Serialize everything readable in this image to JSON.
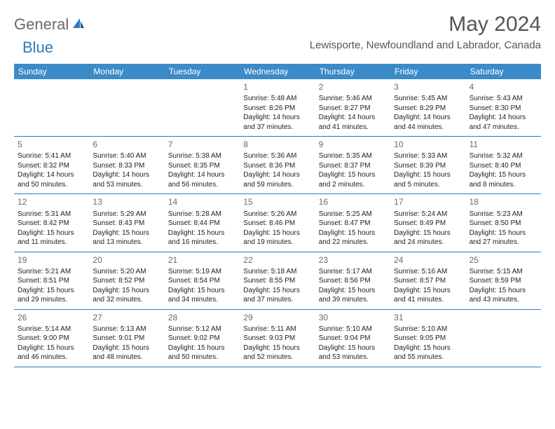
{
  "logo": {
    "general": "General",
    "blue": "Blue"
  },
  "title": "May 2024",
  "location": "Lewisporte, Newfoundland and Labrador, Canada",
  "colors": {
    "header_bg": "#3b8bc9",
    "header_text": "#ffffff",
    "divider": "#2b7bbf",
    "text": "#222222",
    "muted": "#6a6a6a",
    "logo_gray": "#6a6a6a",
    "logo_blue": "#2b7bbf",
    "background": "#ffffff"
  },
  "weekdays": [
    "Sunday",
    "Monday",
    "Tuesday",
    "Wednesday",
    "Thursday",
    "Friday",
    "Saturday"
  ],
  "weeks": [
    [
      null,
      null,
      null,
      {
        "n": "1",
        "sr": "Sunrise: 5:48 AM",
        "ss": "Sunset: 8:26 PM",
        "d1": "Daylight: 14 hours",
        "d2": "and 37 minutes."
      },
      {
        "n": "2",
        "sr": "Sunrise: 5:46 AM",
        "ss": "Sunset: 8:27 PM",
        "d1": "Daylight: 14 hours",
        "d2": "and 41 minutes."
      },
      {
        "n": "3",
        "sr": "Sunrise: 5:45 AM",
        "ss": "Sunset: 8:29 PM",
        "d1": "Daylight: 14 hours",
        "d2": "and 44 minutes."
      },
      {
        "n": "4",
        "sr": "Sunrise: 5:43 AM",
        "ss": "Sunset: 8:30 PM",
        "d1": "Daylight: 14 hours",
        "d2": "and 47 minutes."
      }
    ],
    [
      {
        "n": "5",
        "sr": "Sunrise: 5:41 AM",
        "ss": "Sunset: 8:32 PM",
        "d1": "Daylight: 14 hours",
        "d2": "and 50 minutes."
      },
      {
        "n": "6",
        "sr": "Sunrise: 5:40 AM",
        "ss": "Sunset: 8:33 PM",
        "d1": "Daylight: 14 hours",
        "d2": "and 53 minutes."
      },
      {
        "n": "7",
        "sr": "Sunrise: 5:38 AM",
        "ss": "Sunset: 8:35 PM",
        "d1": "Daylight: 14 hours",
        "d2": "and 56 minutes."
      },
      {
        "n": "8",
        "sr": "Sunrise: 5:36 AM",
        "ss": "Sunset: 8:36 PM",
        "d1": "Daylight: 14 hours",
        "d2": "and 59 minutes."
      },
      {
        "n": "9",
        "sr": "Sunrise: 5:35 AM",
        "ss": "Sunset: 8:37 PM",
        "d1": "Daylight: 15 hours",
        "d2": "and 2 minutes."
      },
      {
        "n": "10",
        "sr": "Sunrise: 5:33 AM",
        "ss": "Sunset: 8:39 PM",
        "d1": "Daylight: 15 hours",
        "d2": "and 5 minutes."
      },
      {
        "n": "11",
        "sr": "Sunrise: 5:32 AM",
        "ss": "Sunset: 8:40 PM",
        "d1": "Daylight: 15 hours",
        "d2": "and 8 minutes."
      }
    ],
    [
      {
        "n": "12",
        "sr": "Sunrise: 5:31 AM",
        "ss": "Sunset: 8:42 PM",
        "d1": "Daylight: 15 hours",
        "d2": "and 11 minutes."
      },
      {
        "n": "13",
        "sr": "Sunrise: 5:29 AM",
        "ss": "Sunset: 8:43 PM",
        "d1": "Daylight: 15 hours",
        "d2": "and 13 minutes."
      },
      {
        "n": "14",
        "sr": "Sunrise: 5:28 AM",
        "ss": "Sunset: 8:44 PM",
        "d1": "Daylight: 15 hours",
        "d2": "and 16 minutes."
      },
      {
        "n": "15",
        "sr": "Sunrise: 5:26 AM",
        "ss": "Sunset: 8:46 PM",
        "d1": "Daylight: 15 hours",
        "d2": "and 19 minutes."
      },
      {
        "n": "16",
        "sr": "Sunrise: 5:25 AM",
        "ss": "Sunset: 8:47 PM",
        "d1": "Daylight: 15 hours",
        "d2": "and 22 minutes."
      },
      {
        "n": "17",
        "sr": "Sunrise: 5:24 AM",
        "ss": "Sunset: 8:49 PM",
        "d1": "Daylight: 15 hours",
        "d2": "and 24 minutes."
      },
      {
        "n": "18",
        "sr": "Sunrise: 5:23 AM",
        "ss": "Sunset: 8:50 PM",
        "d1": "Daylight: 15 hours",
        "d2": "and 27 minutes."
      }
    ],
    [
      {
        "n": "19",
        "sr": "Sunrise: 5:21 AM",
        "ss": "Sunset: 8:51 PM",
        "d1": "Daylight: 15 hours",
        "d2": "and 29 minutes."
      },
      {
        "n": "20",
        "sr": "Sunrise: 5:20 AM",
        "ss": "Sunset: 8:52 PM",
        "d1": "Daylight: 15 hours",
        "d2": "and 32 minutes."
      },
      {
        "n": "21",
        "sr": "Sunrise: 5:19 AM",
        "ss": "Sunset: 8:54 PM",
        "d1": "Daylight: 15 hours",
        "d2": "and 34 minutes."
      },
      {
        "n": "22",
        "sr": "Sunrise: 5:18 AM",
        "ss": "Sunset: 8:55 PM",
        "d1": "Daylight: 15 hours",
        "d2": "and 37 minutes."
      },
      {
        "n": "23",
        "sr": "Sunrise: 5:17 AM",
        "ss": "Sunset: 8:56 PM",
        "d1": "Daylight: 15 hours",
        "d2": "and 39 minutes."
      },
      {
        "n": "24",
        "sr": "Sunrise: 5:16 AM",
        "ss": "Sunset: 8:57 PM",
        "d1": "Daylight: 15 hours",
        "d2": "and 41 minutes."
      },
      {
        "n": "25",
        "sr": "Sunrise: 5:15 AM",
        "ss": "Sunset: 8:59 PM",
        "d1": "Daylight: 15 hours",
        "d2": "and 43 minutes."
      }
    ],
    [
      {
        "n": "26",
        "sr": "Sunrise: 5:14 AM",
        "ss": "Sunset: 9:00 PM",
        "d1": "Daylight: 15 hours",
        "d2": "and 46 minutes."
      },
      {
        "n": "27",
        "sr": "Sunrise: 5:13 AM",
        "ss": "Sunset: 9:01 PM",
        "d1": "Daylight: 15 hours",
        "d2": "and 48 minutes."
      },
      {
        "n": "28",
        "sr": "Sunrise: 5:12 AM",
        "ss": "Sunset: 9:02 PM",
        "d1": "Daylight: 15 hours",
        "d2": "and 50 minutes."
      },
      {
        "n": "29",
        "sr": "Sunrise: 5:11 AM",
        "ss": "Sunset: 9:03 PM",
        "d1": "Daylight: 15 hours",
        "d2": "and 52 minutes."
      },
      {
        "n": "30",
        "sr": "Sunrise: 5:10 AM",
        "ss": "Sunset: 9:04 PM",
        "d1": "Daylight: 15 hours",
        "d2": "and 53 minutes."
      },
      {
        "n": "31",
        "sr": "Sunrise: 5:10 AM",
        "ss": "Sunset: 9:05 PM",
        "d1": "Daylight: 15 hours",
        "d2": "and 55 minutes."
      },
      null
    ]
  ]
}
